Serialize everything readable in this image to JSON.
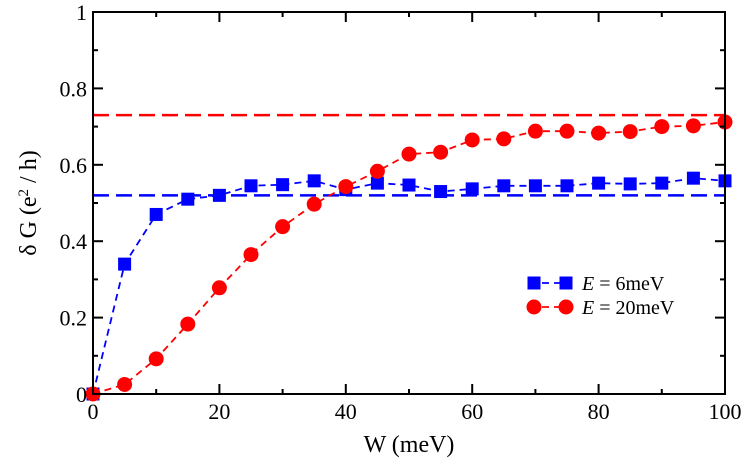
{
  "chart_data": {
    "type": "line",
    "xlabel": "W (meV)",
    "ylabel": {
      "prefix": "δ G (e",
      "superscript": "2",
      "suffix": " / h)"
    },
    "xlim": [
      0,
      100
    ],
    "ylim": [
      0,
      1
    ],
    "x_ticks": [
      0,
      20,
      40,
      60,
      80,
      100
    ],
    "y_ticks": [
      0,
      0.2,
      0.4,
      0.6,
      0.8,
      1
    ],
    "x_tick_labels": [
      "0",
      "20",
      "40",
      "60",
      "80",
      "100"
    ],
    "y_tick_labels": [
      "0",
      "0.2",
      "0.4",
      "0.6",
      "0.8",
      "1"
    ],
    "grid": false,
    "legend_position": "right-center",
    "series": [
      {
        "name": "E = 6meV",
        "legend_italic": "E",
        "legend_rest": " = 6meV",
        "color": "#0000ff",
        "marker": "square",
        "line_style": "dashed",
        "x": [
          0,
          5,
          10,
          15,
          20,
          25,
          30,
          35,
          40,
          45,
          50,
          55,
          60,
          65,
          70,
          75,
          80,
          85,
          90,
          95,
          100
        ],
        "y": [
          0.0,
          0.34,
          0.47,
          0.51,
          0.52,
          0.545,
          0.548,
          0.558,
          0.535,
          0.552,
          0.547,
          0.53,
          0.537,
          0.545,
          0.545,
          0.545,
          0.552,
          0.55,
          0.552,
          0.565,
          0.558
        ]
      },
      {
        "name": "E = 20meV",
        "legend_italic": "E",
        "legend_rest": " = 20meV",
        "color": "#ff0000",
        "marker": "circle",
        "line_style": "dashed",
        "x": [
          0,
          5,
          10,
          15,
          20,
          25,
          30,
          35,
          40,
          45,
          50,
          55,
          60,
          65,
          70,
          75,
          80,
          85,
          90,
          95,
          100
        ],
        "y": [
          0.0,
          0.025,
          0.092,
          0.183,
          0.278,
          0.365,
          0.438,
          0.497,
          0.543,
          0.583,
          0.628,
          0.633,
          0.665,
          0.668,
          0.688,
          0.688,
          0.683,
          0.687,
          0.7,
          0.702,
          0.712
        ]
      }
    ],
    "reference_lines": [
      {
        "y": 0.52,
        "color": "#0000ff",
        "line_style": "dashed"
      },
      {
        "y": 0.73,
        "color": "#ff0000",
        "line_style": "dashed"
      }
    ]
  }
}
